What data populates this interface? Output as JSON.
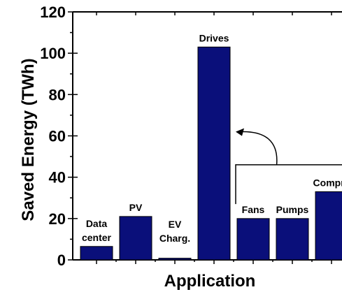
{
  "chart_data": {
    "type": "bar",
    "xlabel": "Application",
    "ylabel": "Saved Energy (TWh)",
    "ylim": [
      0,
      120
    ],
    "yticks": [
      0,
      20,
      40,
      60,
      80,
      100,
      120
    ],
    "categories": [
      {
        "label_lines": [
          "Data",
          "center"
        ],
        "value": 6.5
      },
      {
        "label_lines": [
          "PV"
        ],
        "value": 21
      },
      {
        "label_lines": [
          "EV",
          "Charg."
        ],
        "value": 0.8
      },
      {
        "label_lines": [
          "Drives"
        ],
        "value": 103
      },
      {
        "label_lines": [
          "Fans"
        ],
        "value": 20
      },
      {
        "label_lines": [
          "Pumps"
        ],
        "value": 20
      },
      {
        "label_lines": [
          "Compre"
        ],
        "value": 33
      }
    ],
    "bar_color": "#0a0f7a",
    "grid": false,
    "annotation": "bracket grouping Fans, Pumps and Compre with curved arrow pointing to Drives"
  }
}
